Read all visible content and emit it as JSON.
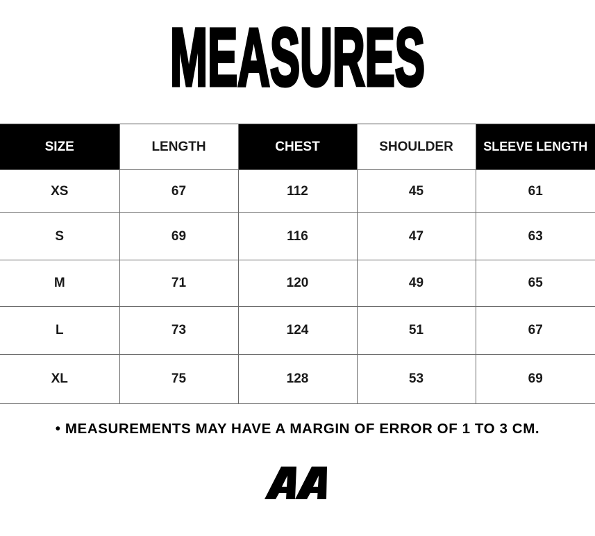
{
  "title": "MEASURES",
  "table": {
    "headers": [
      "SIZE",
      "LENGTH",
      "CHEST",
      "SHOULDER",
      "SLEEVE LENGTH"
    ],
    "rows": [
      [
        "XS",
        "67",
        "112",
        "45",
        "61"
      ],
      [
        "S",
        "69",
        "116",
        "47",
        "63"
      ],
      [
        "M",
        "71",
        "120",
        "49",
        "65"
      ],
      [
        "L",
        "73",
        "124",
        "51",
        "67"
      ],
      [
        "XL",
        "75",
        "128",
        "53",
        "69"
      ]
    ]
  },
  "note": "• MEASUREMENTS MAY HAVE A MARGIN OF ERROR OF 1 TO 3 CM.",
  "logo": "AA"
}
